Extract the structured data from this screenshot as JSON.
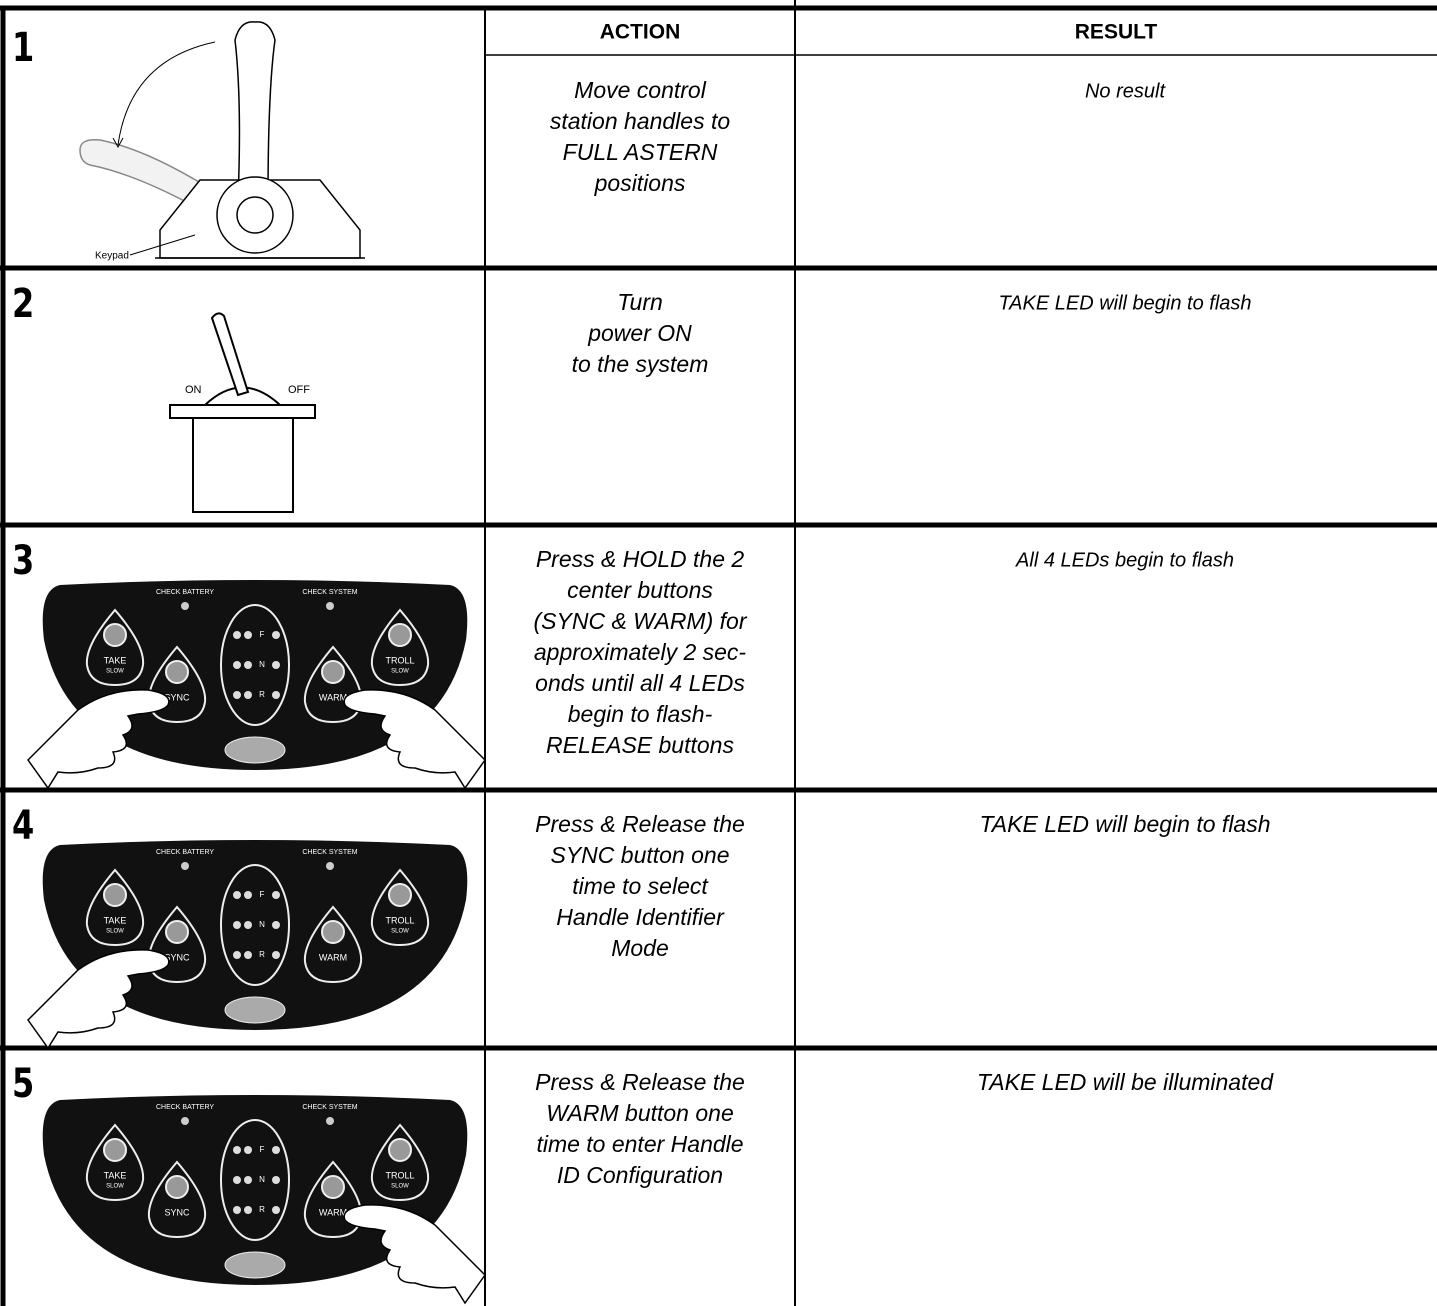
{
  "header": {
    "action": "ACTION",
    "result": "RESULT"
  },
  "keypad": {
    "check_battery": "CHECK BATTERY",
    "check_system": "CHECK SYSTEM",
    "take": "TAKE",
    "troll": "TROLL",
    "slow": "SLOW",
    "sync": "SYNC",
    "warm": "WARM",
    "f": "F",
    "n": "N",
    "r": "R"
  },
  "rows": [
    {
      "number": "1",
      "figure": {
        "label": "Keypad"
      },
      "action": [
        "Move control",
        "station handles to",
        "FULL ASTERN",
        "positions"
      ],
      "result": "No result"
    },
    {
      "number": "2",
      "figure": {
        "on": "ON",
        "off": "OFF"
      },
      "action": [
        "Turn",
        "power ON",
        "to the system"
      ],
      "result": "TAKE LED will begin to flash"
    },
    {
      "number": "3",
      "action": [
        "Press & HOLD the 2",
        "center buttons",
        "(SYNC & WARM) for",
        "approximately 2 sec-",
        "onds until all 4 LEDs",
        "begin to flash-",
        "RELEASE buttons"
      ],
      "result": "All 4 LEDs begin to flash"
    },
    {
      "number": "4",
      "action": [
        "Press & Release the",
        "SYNC button one",
        "time to select",
        "Handle Identifier",
        "Mode"
      ],
      "result": "TAKE LED will begin to flash"
    },
    {
      "number": "5",
      "action": [
        "Press & Release the",
        "WARM button one",
        "time to enter Handle",
        "ID Configuration"
      ],
      "result": "TAKE LED will be illuminated"
    }
  ]
}
